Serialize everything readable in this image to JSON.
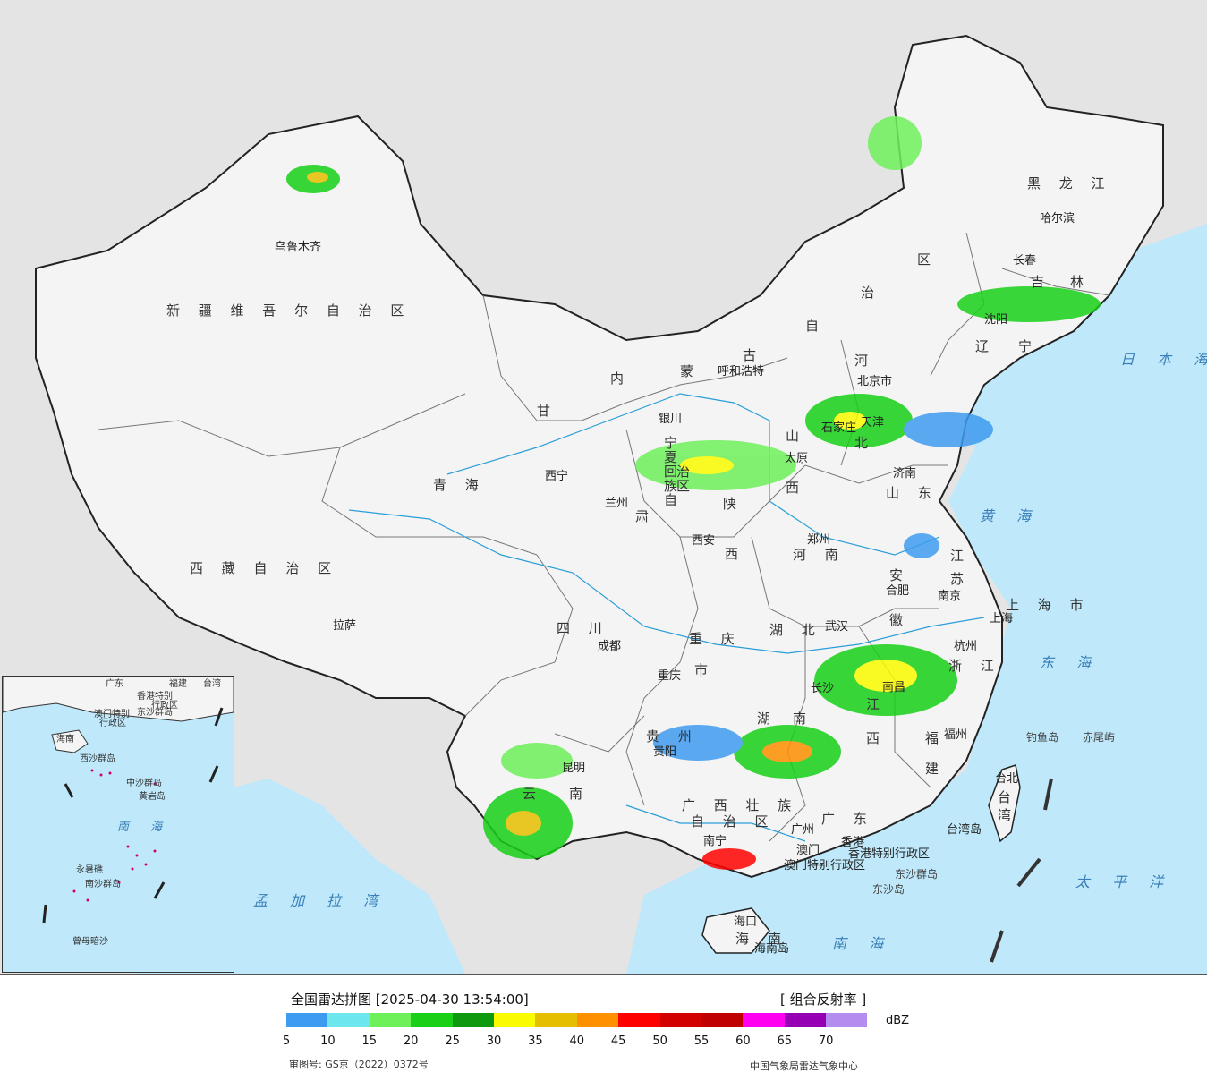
{
  "legend": {
    "title": "全国雷达拼图 [2025-04-30 13:54:00]",
    "product": "[ 组合反射率 ]",
    "unit": "dBZ",
    "ticks": [
      "5",
      "10",
      "15",
      "20",
      "25",
      "30",
      "35",
      "40",
      "45",
      "50",
      "55",
      "60",
      "65",
      "70"
    ],
    "colors": [
      "#3e9bf0",
      "#6ee6ee",
      "#6ef05a",
      "#18d018",
      "#0e9a0e",
      "#fafa00",
      "#e6be00",
      "#ff9000",
      "#ff0000",
      "#d20000",
      "#c00000",
      "#ff00f0",
      "#9600b4",
      "#b48cf0"
    ],
    "approval": "审图号: GS京（2022）0372号",
    "source": "中国气象局雷达气象中心"
  },
  "map": {
    "provinces": [
      "新 疆 维 吾 尔 自 治 区",
      "西 藏 自 治 区",
      "青 海",
      "甘",
      "肃",
      "内",
      "蒙",
      "古",
      "自",
      "治",
      "区",
      "黑 龙 江",
      "吉",
      "林",
      "辽",
      "宁",
      "河",
      "北",
      "山",
      "西",
      "陕",
      "西",
      "山 东",
      "河 南",
      "江",
      "苏",
      "安",
      "徽",
      "湖 北",
      "湖",
      "南",
      "四 川",
      "重 庆",
      "市",
      "贵 州",
      "云",
      "南",
      "江",
      "西",
      "浙 江",
      "福",
      "建",
      "广 东",
      "广 西 壮 族",
      "自 治 区",
      "海",
      "南",
      "上 海 市",
      "台",
      "湾",
      "宁",
      "夏",
      "回",
      "族",
      "自",
      "治",
      "区"
    ],
    "cities": [
      "乌鲁木齐",
      "拉萨",
      "西宁",
      "兰州",
      "银川",
      "呼和浩特",
      "北京市",
      "天津",
      "太原",
      "石家庄",
      "西安",
      "郑州",
      "济南",
      "南京",
      "合肥",
      "上海",
      "杭州",
      "武汉",
      "成都",
      "重庆",
      "长沙",
      "南昌",
      "福州",
      "台北",
      "昆明",
      "贵阳",
      "南宁",
      "广州",
      "香港",
      "澳门",
      "海口",
      "哈尔滨",
      "长春",
      "沈阳",
      "海南岛",
      "台湾岛",
      "香港特别行政区",
      "澳门特别行政区"
    ],
    "seas": [
      "日 本 海",
      "黄 海",
      "东 海",
      "太 平 洋",
      "南 海",
      "孟 加 拉 湾"
    ],
    "islands": [
      "钓鱼岛",
      "赤尾屿",
      "东沙群岛",
      "东沙岛"
    ],
    "inset_labels": [
      "南 海",
      "广东",
      "福建",
      "台湾",
      "香港特别",
      "行政区",
      "澳门特别",
      "行政区",
      "海南",
      "西沙群岛",
      "中沙群岛",
      "南沙群岛",
      "曾母暗沙",
      "东沙群岛",
      "黄岩岛",
      "永暑礁"
    ]
  }
}
